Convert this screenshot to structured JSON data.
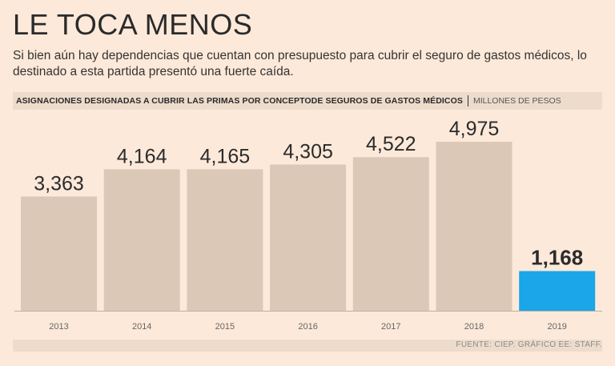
{
  "header": {
    "headline": "LE TOCA MENOS",
    "subtitle": "Si bien aún hay dependencias que cuentan con presupuesto para cubrir el seguro de gastos médicos, lo destinado a esta partida presentó una fuerte caída."
  },
  "colors": {
    "background": "#fde9d9",
    "bar": "#dbc8b7",
    "highlight": "#1aa6e8",
    "band": "#eddccc"
  },
  "chart_data": {
    "type": "bar",
    "title": "ASIGNACIONES DESIGNADAS A CUBRIR LAS PRIMAS POR CONCEPTODE SEGUROS DE GASTOS MÉDICOS",
    "units": "MILLONES DE PESOS",
    "categories": [
      "2013",
      "2014",
      "2015",
      "2016",
      "2017",
      "2018",
      "2019"
    ],
    "values": [
      3363,
      4164,
      4165,
      4305,
      4522,
      4975,
      1168
    ],
    "labels": [
      "3,363",
      "4,164",
      "4,165",
      "4,305",
      "4,522",
      "4,975",
      "1,168"
    ],
    "highlight_category": "2019",
    "ylim": [
      0,
      4975
    ],
    "xlabel": "",
    "ylabel": "",
    "grid": false,
    "legend": "none"
  },
  "footer": {
    "source": "FUENTE: CIEP. GRÁFICO EE: STAFF."
  }
}
